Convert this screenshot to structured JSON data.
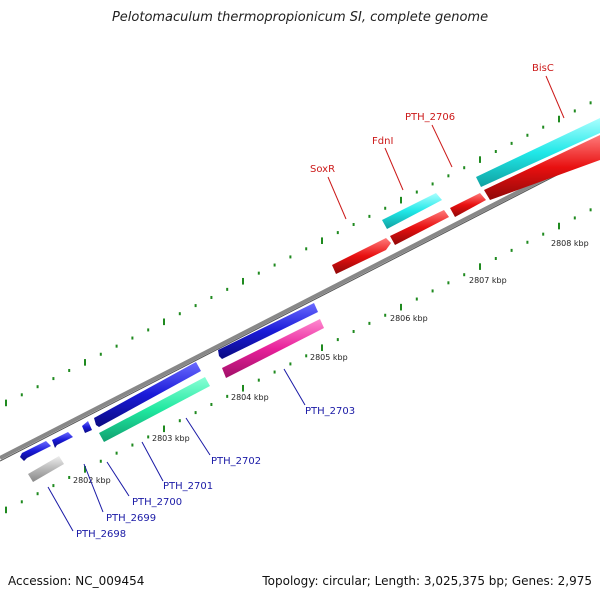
{
  "title": "Pelotomaculum thermopropionicum SI, complete genome",
  "footer": {
    "accession": "Accession: NC_009454",
    "topology": "Topology: circular; Length: 3,025,375 bp; Genes: 2,975"
  },
  "kbp_labels": [
    "2802 kbp",
    "2803 kbp",
    "2804 kbp",
    "2805 kbp",
    "2806 kbp",
    "2807 kbp",
    "2808 kbp"
  ],
  "gene_labels": {
    "blue": [
      "PTH_2698",
      "PTH_2699",
      "PTH_2700",
      "PTH_2701",
      "PTH_2702",
      "PTH_2703"
    ],
    "red": [
      "SoxR",
      "FdnI",
      "PTH_2706",
      "BisC"
    ]
  },
  "colors": {
    "blue": "#1a1ad8",
    "green": "#20e8a0",
    "gray": "#b8b8b8",
    "pink": "#e8209a",
    "red": "#e81010",
    "cyan": "#20e8e8",
    "backbone": "#888888",
    "tick": "#1f8a1f"
  }
}
